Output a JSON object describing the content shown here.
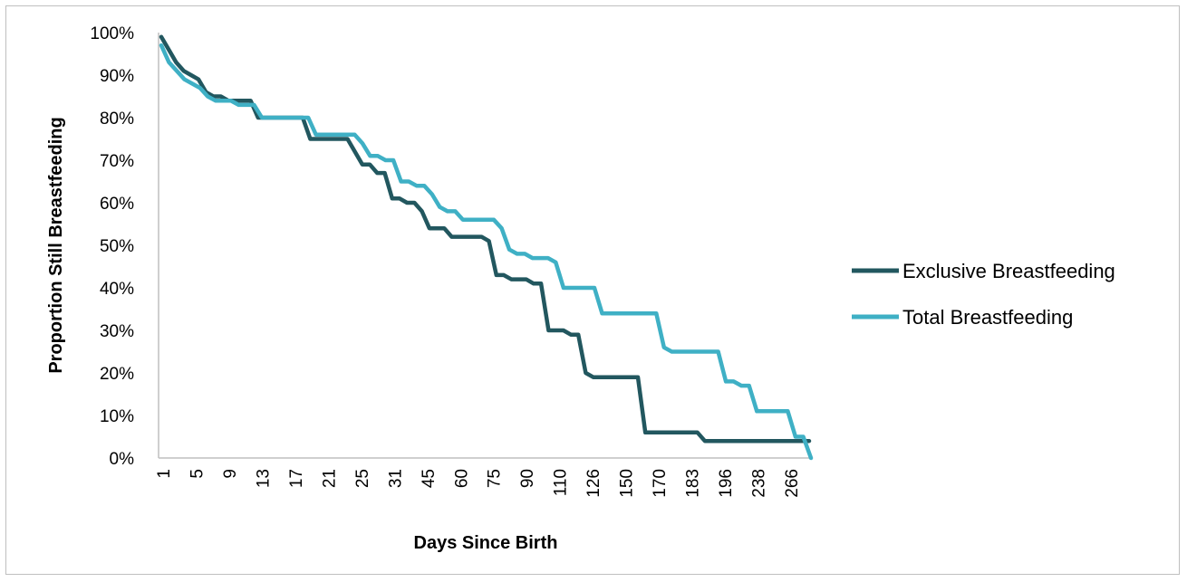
{
  "chart_data": {
    "type": "line",
    "xlabel": "Days Since Birth",
    "ylabel": "Proportion Still Breastfeeding",
    "ylim": [
      0,
      1
    ],
    "y_ticks": [
      "0%",
      "10%",
      "20%",
      "30%",
      "40%",
      "50%",
      "60%",
      "70%",
      "80%",
      "90%",
      "100%"
    ],
    "x_tick_labels": [
      "1",
      "5",
      "9",
      "13",
      "17",
      "21",
      "25",
      "31",
      "45",
      "60",
      "75",
      "90",
      "110",
      "126",
      "150",
      "170",
      "183",
      "196",
      "238",
      "266"
    ],
    "legend_position": "right",
    "series": [
      {
        "name": "Exclusive Breastfeeding",
        "color": "#22575f",
        "values": [
          0.99,
          0.96,
          0.93,
          0.91,
          0.9,
          0.89,
          0.86,
          0.85,
          0.85,
          0.84,
          0.84,
          0.84,
          0.84,
          0.8,
          0.8,
          0.8,
          0.8,
          0.8,
          0.8,
          0.8,
          0.75,
          0.75,
          0.75,
          0.75,
          0.75,
          0.75,
          0.72,
          0.69,
          0.69,
          0.67,
          0.67,
          0.61,
          0.61,
          0.6,
          0.6,
          0.58,
          0.54,
          0.54,
          0.54,
          0.52,
          0.52,
          0.52,
          0.52,
          0.52,
          0.51,
          0.43,
          0.43,
          0.42,
          0.42,
          0.42,
          0.41,
          0.41,
          0.3,
          0.3,
          0.3,
          0.29,
          0.29,
          0.2,
          0.19,
          0.19,
          0.19,
          0.19,
          0.19,
          0.19,
          0.19,
          0.06,
          0.06,
          0.06,
          0.06,
          0.06,
          0.06,
          0.06,
          0.06,
          0.04,
          0.04,
          0.04,
          0.04,
          0.04,
          0.04,
          0.04,
          0.04,
          0.04,
          0.04,
          0.04,
          0.04,
          0.04,
          0.04,
          0.04
        ]
      },
      {
        "name": "Total Breastfeeding",
        "color": "#3fb0c5",
        "values": [
          0.97,
          0.93,
          0.91,
          0.89,
          0.88,
          0.87,
          0.85,
          0.84,
          0.84,
          0.84,
          0.83,
          0.83,
          0.83,
          0.8,
          0.8,
          0.8,
          0.8,
          0.8,
          0.8,
          0.8,
          0.76,
          0.76,
          0.76,
          0.76,
          0.76,
          0.76,
          0.74,
          0.71,
          0.71,
          0.7,
          0.7,
          0.65,
          0.65,
          0.64,
          0.64,
          0.62,
          0.59,
          0.58,
          0.58,
          0.56,
          0.56,
          0.56,
          0.56,
          0.56,
          0.54,
          0.49,
          0.48,
          0.48,
          0.47,
          0.47,
          0.47,
          0.46,
          0.4,
          0.4,
          0.4,
          0.4,
          0.4,
          0.34,
          0.34,
          0.34,
          0.34,
          0.34,
          0.34,
          0.34,
          0.34,
          0.26,
          0.25,
          0.25,
          0.25,
          0.25,
          0.25,
          0.25,
          0.25,
          0.18,
          0.18,
          0.17,
          0.17,
          0.11,
          0.11,
          0.11,
          0.11,
          0.11,
          0.05,
          0.05,
          0.0
        ]
      }
    ]
  }
}
